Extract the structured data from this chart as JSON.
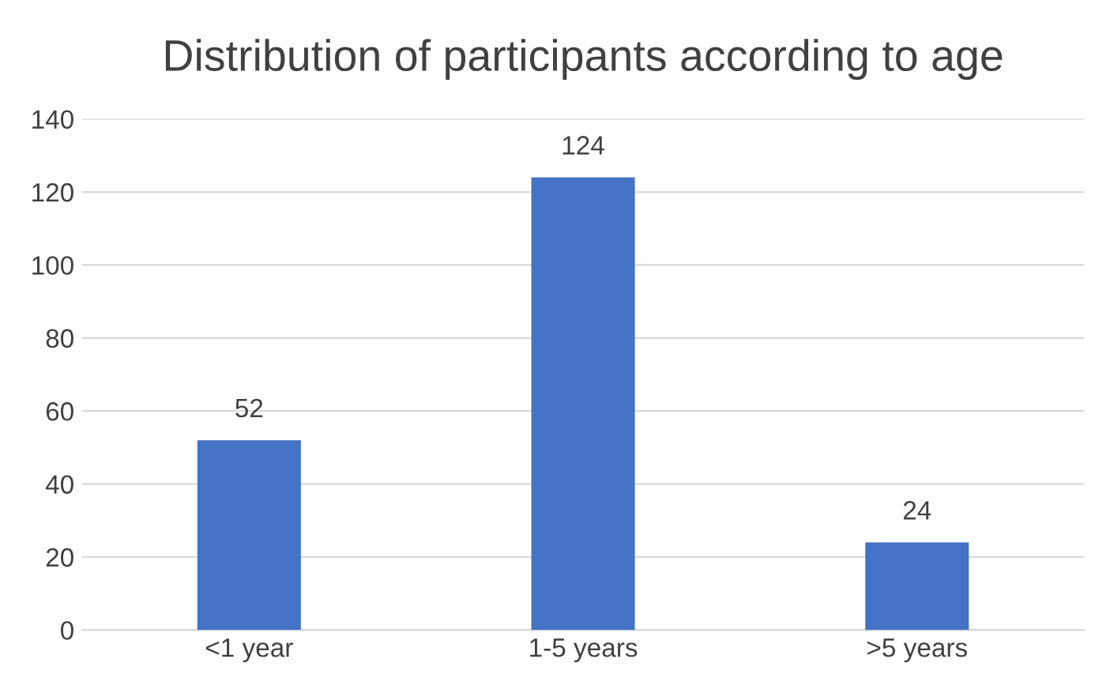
{
  "chart_data": {
    "type": "bar",
    "title": "Distribution of participants according to age",
    "categories": [
      "<1 year",
      "1-5 years",
      ">5 years"
    ],
    "values": [
      52,
      124,
      24
    ],
    "color": "#4472c4",
    "ylim": [
      0,
      140
    ],
    "yticks": [
      0,
      20,
      40,
      60,
      80,
      100,
      120,
      140
    ],
    "grid": "y",
    "data_labels": true
  }
}
